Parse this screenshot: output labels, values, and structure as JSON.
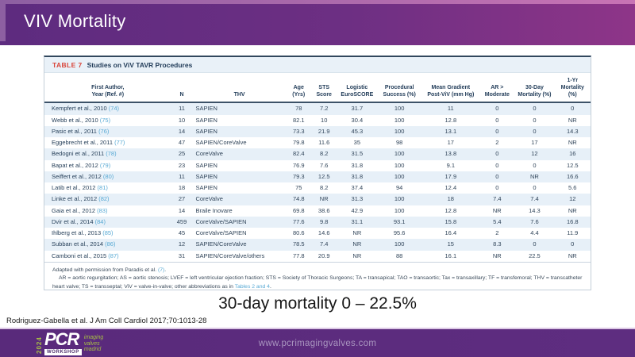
{
  "slide": {
    "title": "VIV Mortality"
  },
  "table": {
    "label": "TABLE 7",
    "title": "Studies on ViV TAVR Procedures",
    "columns": [
      "First Author,\nYear (Ref. #)",
      "N",
      "THV",
      "Age\n(Yrs)",
      "STS\nScore",
      "Logistic\nEuroSCORE",
      "Procedural\nSuccess (%)",
      "Mean Gradient\nPost-ViV (mm Hg)",
      "AR >\nModerate",
      "30-Day\nMortality (%)",
      "1-Yr\nMortality (%)"
    ],
    "col_widths": [
      "23.2%",
      "3.9%",
      "17.2%",
      "4.5%",
      "4.8%",
      "7.3%",
      "8.2%",
      "10.6%",
      "6.4%",
      "7.3%",
      "6.6%"
    ],
    "rows": [
      {
        "author": "Kempfert et al., 2010",
        "ref": "(74)",
        "cells": [
          "11",
          "SAPIEN",
          "78",
          "7.2",
          "31.7",
          "100",
          "11",
          "0",
          "0",
          "0"
        ]
      },
      {
        "author": "Webb et al., 2010",
        "ref": "(75)",
        "cells": [
          "10",
          "SAPIEN",
          "82.1",
          "10",
          "30.4",
          "100",
          "12.8",
          "0",
          "0",
          "NR"
        ]
      },
      {
        "author": "Pasic et al., 2011",
        "ref": "(76)",
        "cells": [
          "14",
          "SAPIEN",
          "73.3",
          "21.9",
          "45.3",
          "100",
          "13.1",
          "0",
          "0",
          "14.3"
        ]
      },
      {
        "author": "Eggebrecht et al., 2011",
        "ref": "(77)",
        "cells": [
          "47",
          "SAPIEN/CoreValve",
          "79.8",
          "11.6",
          "35",
          "98",
          "17",
          "2",
          "17",
          "NR"
        ]
      },
      {
        "author": "Bedogni et al., 2011",
        "ref": "(78)",
        "cells": [
          "25",
          "CoreValve",
          "82.4",
          "8.2",
          "31.5",
          "100",
          "13.8",
          "0",
          "12",
          "16"
        ]
      },
      {
        "author": "Bapat et al., 2012",
        "ref": "(79)",
        "cells": [
          "23",
          "SAPIEN",
          "76.9",
          "7.6",
          "31.8",
          "100",
          "9.1",
          "0",
          "0",
          "12.5"
        ]
      },
      {
        "author": "Seiffert et al., 2012",
        "ref": "(80)",
        "cells": [
          "11",
          "SAPIEN",
          "79.3",
          "12.5",
          "31.8",
          "100",
          "17.9",
          "0",
          "NR",
          "16.6"
        ]
      },
      {
        "author": "Latib et al., 2012",
        "ref": "(81)",
        "cells": [
          "18",
          "SAPIEN",
          "75",
          "8.2",
          "37.4",
          "94",
          "12.4",
          "0",
          "0",
          "5.6"
        ]
      },
      {
        "author": "Linke et al., 2012",
        "ref": "(82)",
        "cells": [
          "27",
          "CoreValve",
          "74.8",
          "NR",
          "31.3",
          "100",
          "18",
          "7.4",
          "7.4",
          "12"
        ]
      },
      {
        "author": "Gaia et al., 2012",
        "ref": "(83)",
        "cells": [
          "14",
          "Braile Inovare",
          "69.8",
          "38.6",
          "42.9",
          "100",
          "12.8",
          "NR",
          "14.3",
          "NR"
        ]
      },
      {
        "author": "Dvir et al., 2014",
        "ref": "(84)",
        "cells": [
          "459",
          "CoreValve/SAPIEN",
          "77.6",
          "9.8",
          "31.1",
          "93.1",
          "15.8",
          "5.4",
          "7.6",
          "16.8"
        ]
      },
      {
        "author": "Ihlberg et al., 2013",
        "ref": "(85)",
        "cells": [
          "45",
          "CoreValve/SAPIEN",
          "80.6",
          "14.6",
          "NR",
          "95.6",
          "16.4",
          "2",
          "4.4",
          "11.9"
        ]
      },
      {
        "author": "Subban et al., 2014",
        "ref": "(86)",
        "cells": [
          "12",
          "SAPIEN/CoreValve",
          "78.5",
          "7.4",
          "NR",
          "100",
          "15",
          "8.3",
          "0",
          "0"
        ]
      },
      {
        "author": "Camboni et al., 2015",
        "ref": "(87)",
        "cells": [
          "31",
          "SAPIEN/CoreValve/others",
          "77.8",
          "20.9",
          "NR",
          "88",
          "16.1",
          "NR",
          "22.5",
          "NR"
        ]
      }
    ],
    "footnote1_text": "Adapted with permission from Paradis et al. ",
    "footnote1_link": "(7)",
    "footnote1_end": ".",
    "footnote2_text": "AR = aortic regurgitation; AS = aortic stenosis; LVEF = left ventricular ejection fraction; STS = Society of Thoracic Surgeons; TA = transapical; TAO = transaortic; Tax = transaxillary; TF = transfemoral; THV = transcatheter heart valve; TS = transseptal; ViV = valve-in-valve; other abbreviations as in ",
    "footnote2_link": "Tables 2 and 4",
    "footnote2_end": "."
  },
  "highlight": "30-day mortality 0 – 22.5%",
  "citation": "Rodriguez-Gabella et al. J Am Coll Cardiol 2017;70:1013-28",
  "footer": {
    "url": "www.pcrimagingvalves.com",
    "logo": {
      "year": "2024",
      "brand": "PCR",
      "workshop": "WORKSHOP",
      "tagline": "imaging\nvalves\nmadrid"
    }
  },
  "colors": {
    "titlebar_left": "#5d2b7f",
    "titlebar_right": "#8e3588",
    "table_label_red": "#d9453a",
    "table_header_navy": "#1f3a57",
    "row_stripe_blue": "#e7f0f8",
    "link_blue": "#57a9d4",
    "footer_purple": "#592a7b",
    "logo_green": "#a8c045"
  }
}
